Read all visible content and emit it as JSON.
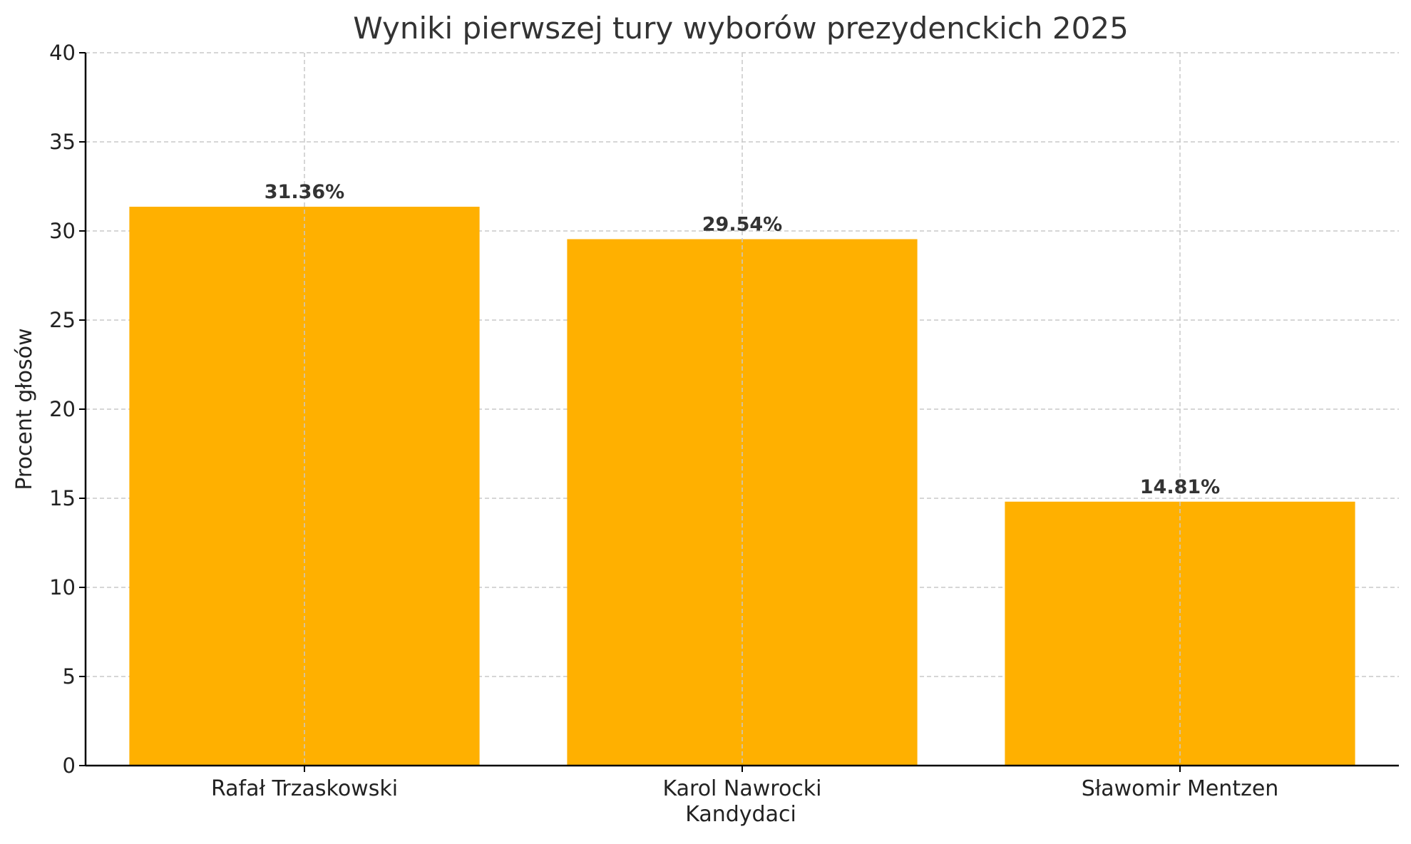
{
  "chart_data": {
    "type": "bar",
    "title": "Wyniki pierwszej tury wyborów prezydenckich 2025",
    "xlabel": "Kandydaci",
    "ylabel": "Procent głosów",
    "categories": [
      "Rafał Trzaskowski",
      "Karol Nawrocki",
      "Sławomir Mentzen"
    ],
    "values": [
      31.36,
      29.54,
      14.81
    ],
    "data_labels": [
      "31.36%",
      "29.54%",
      "14.81%"
    ],
    "ylim": [
      0,
      40
    ],
    "yticks": [
      0,
      5,
      10,
      15,
      20,
      25,
      30,
      35,
      40
    ],
    "grid": true,
    "colors": {
      "bar": "#FFB000",
      "grid": "#c8c8c8",
      "text": "#333333",
      "axis": "#000000"
    }
  }
}
